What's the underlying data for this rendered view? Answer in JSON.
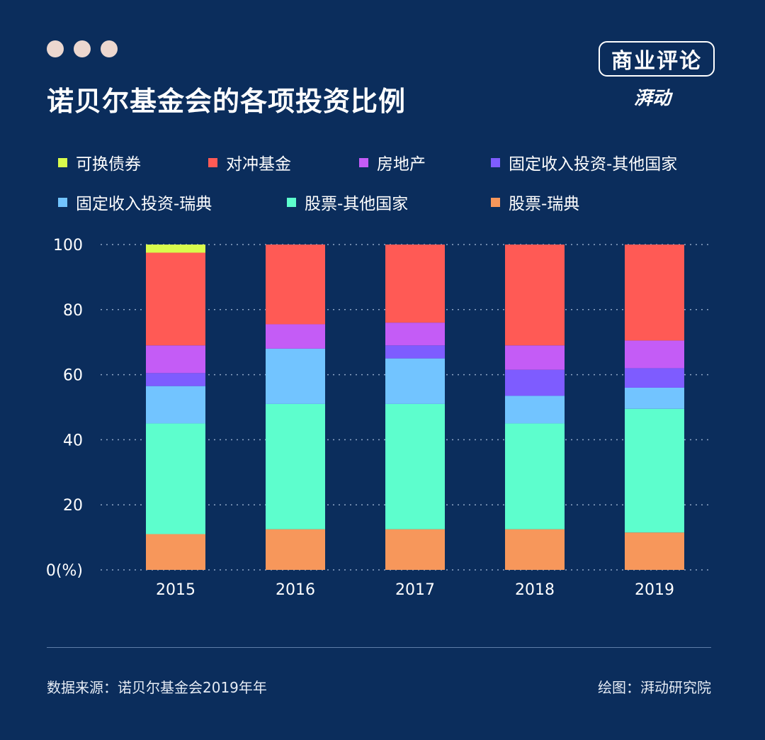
{
  "title": "诺贝尔基金会的各项投资比例",
  "brand": {
    "name": "商业评论",
    "sub": "湃动"
  },
  "footer": {
    "source": "数据来源：诺贝尔基金会2019年年",
    "credit": "绘图：湃动研究院"
  },
  "colors": {
    "background": "#0b2d5c",
    "dots": "#ecd7cf",
    "grid": "#8fa6c6"
  },
  "chart_data": {
    "type": "bar",
    "stacked": true,
    "categories": [
      "2015",
      "2016",
      "2017",
      "2018",
      "2019"
    ],
    "ylim": [
      0,
      100
    ],
    "yticks": [
      {
        "value": 0,
        "label": "0(%)"
      },
      {
        "value": 20,
        "label": "20"
      },
      {
        "value": 40,
        "label": "40"
      },
      {
        "value": 60,
        "label": "60"
      },
      {
        "value": 80,
        "label": "80"
      },
      {
        "value": 100,
        "label": "100"
      }
    ],
    "grid": true,
    "legend_position": "top",
    "series": [
      {
        "name": "股票-瑞典",
        "color": "#f7975b",
        "values": [
          11,
          12.5,
          12.5,
          12.5,
          11.5
        ]
      },
      {
        "name": "股票-其他国家",
        "color": "#5dfecd",
        "values": [
          34,
          38.5,
          38.5,
          32.5,
          38
        ]
      },
      {
        "name": "固定收入投资-瑞典",
        "color": "#72c4ff",
        "values": [
          11.5,
          17,
          14,
          8.5,
          6.5
        ]
      },
      {
        "name": "固定收入投资-其他国家",
        "color": "#7e5cff",
        "values": [
          4,
          0,
          4,
          8,
          6
        ]
      },
      {
        "name": "房地产",
        "color": "#c45cf6",
        "values": [
          8.5,
          7.5,
          7,
          7.5,
          8.5
        ]
      },
      {
        "name": "对冲基金",
        "color": "#ff5a55",
        "values": [
          28.5,
          24.5,
          24,
          31,
          29.5
        ]
      },
      {
        "name": "可换债券",
        "color": "#d9fb4c",
        "values": [
          2.5,
          0,
          0,
          0,
          0
        ]
      }
    ]
  },
  "legend_order": [
    6,
    5,
    4,
    3,
    2,
    1,
    0
  ]
}
